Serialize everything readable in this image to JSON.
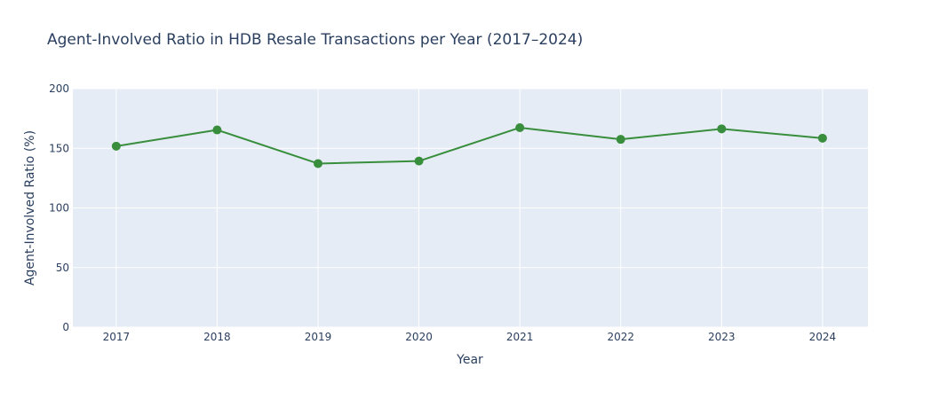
{
  "chart_data": {
    "type": "line",
    "title": "Agent-Involved Ratio in HDB Resale Transactions per Year (2017–2024)",
    "xlabel": "Year",
    "ylabel": "Agent-Involved Ratio (%)",
    "x": [
      "2017",
      "2018",
      "2019",
      "2020",
      "2021",
      "2022",
      "2023",
      "2024"
    ],
    "series": [
      {
        "values": [
          151.8,
          165.4,
          137.2,
          139.3,
          167.3,
          157.5,
          166.3,
          158.5
        ],
        "color": "#388e3c",
        "mode": "lines+markers"
      }
    ],
    "xlim": [
      2016.57,
      2024.45
    ],
    "ylim": [
      0,
      200
    ],
    "yticks": [
      "0",
      "50",
      "100",
      "150",
      "200"
    ],
    "grid": true,
    "legend": "none",
    "plot_background": "#e5ecf6"
  }
}
